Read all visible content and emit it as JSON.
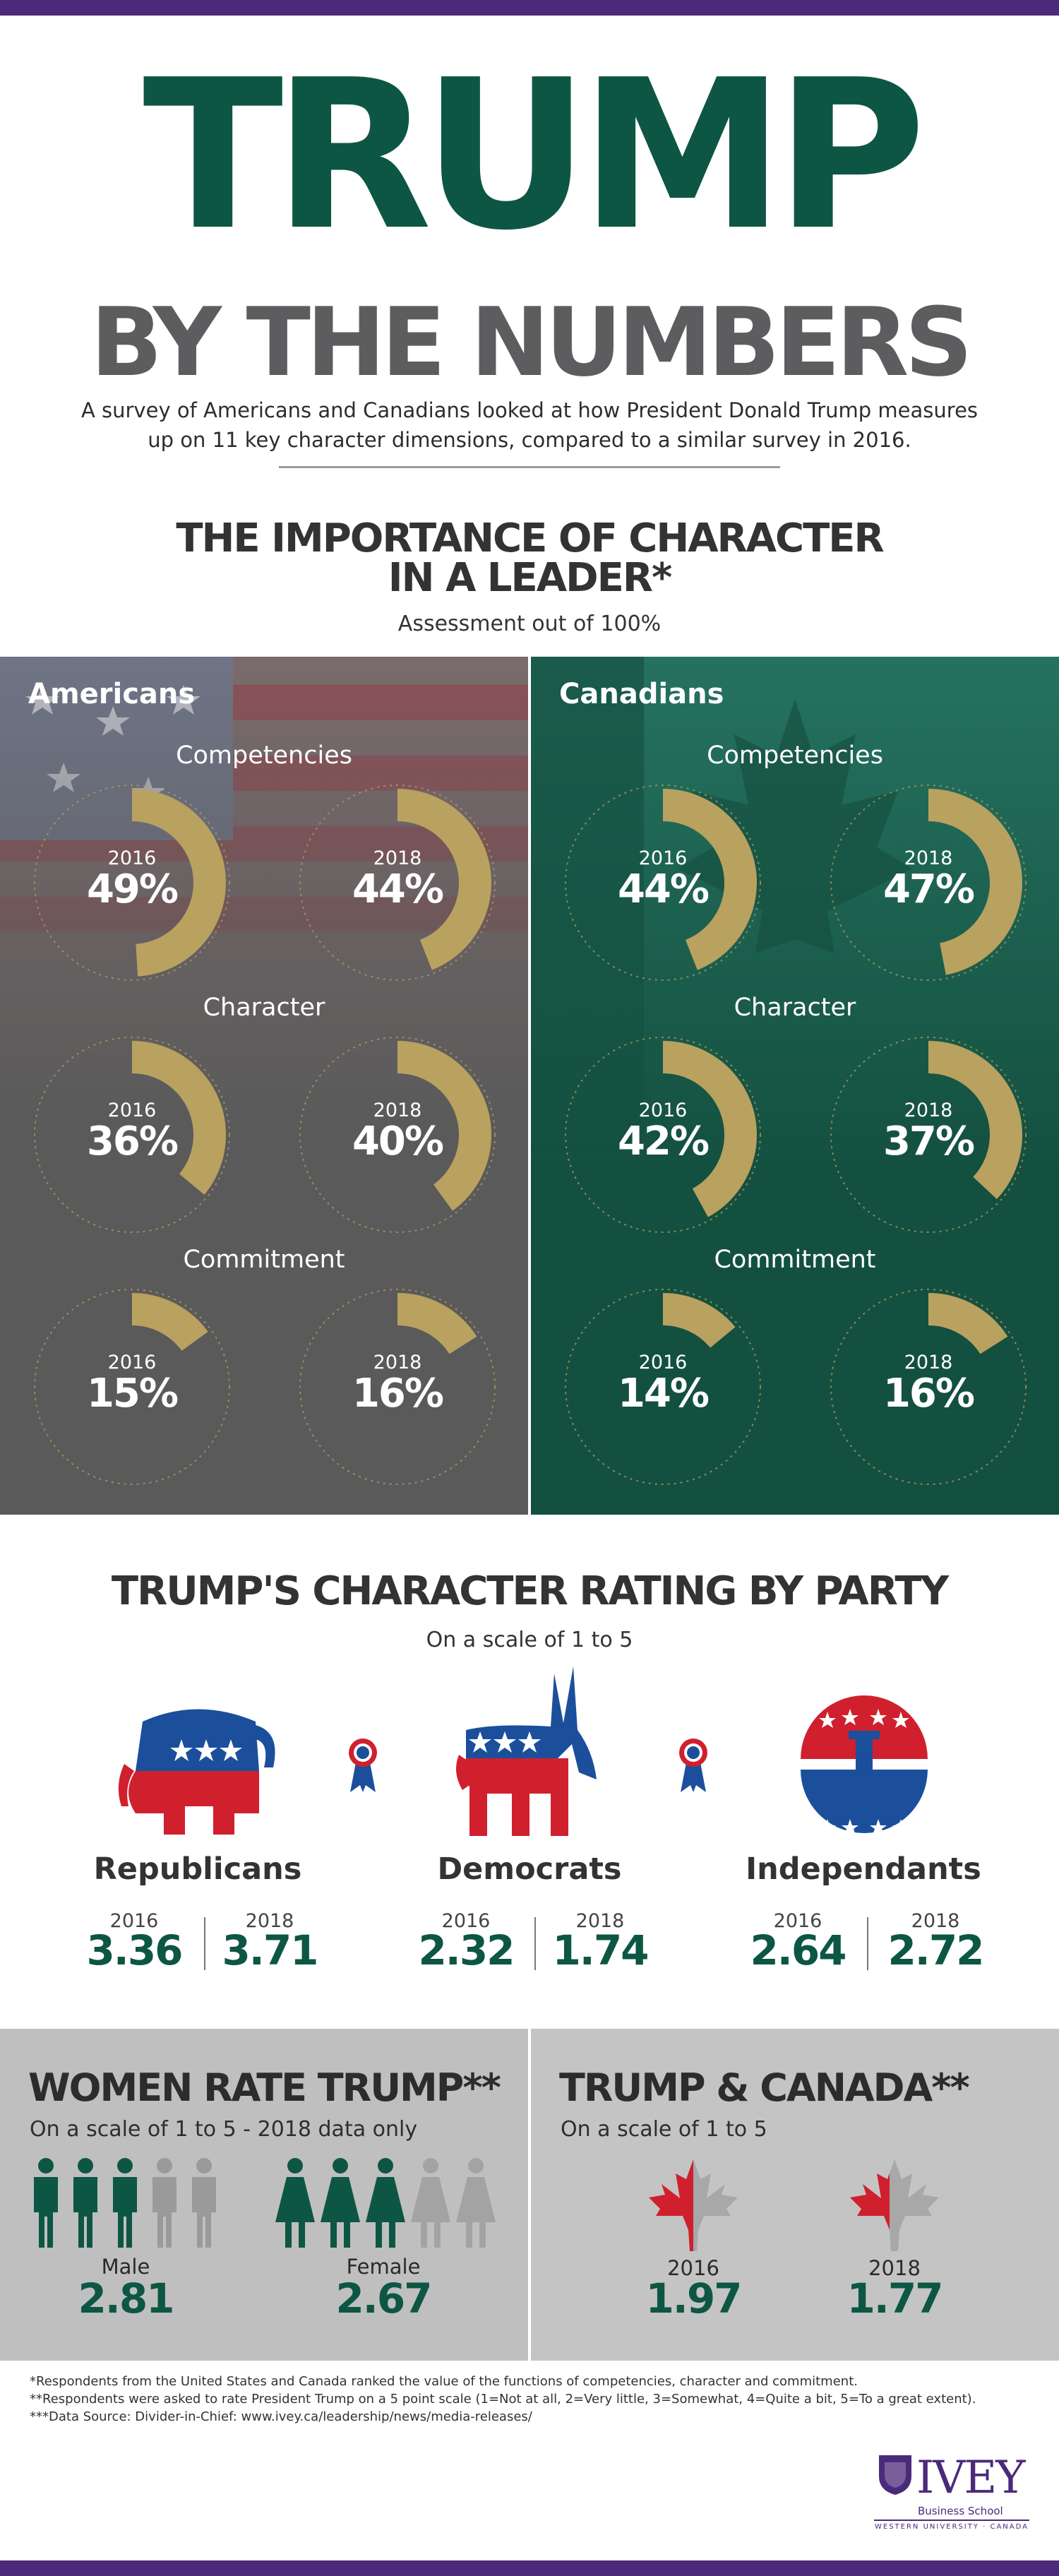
{
  "header": {
    "title": "TRUMP",
    "subtitle": "BY THE NUMBERS",
    "intro": "A survey of Americans and Canadians looked at how President Donald Trump measures up on 11 key character dimensions, compared to a similar survey in 2016."
  },
  "importance": {
    "title_line1": "THE IMPORTANCE OF CHARACTER",
    "title_line2": "IN A LEADER*",
    "subtitle": "Assessment out of 100%",
    "groups": [
      "Competencies",
      "Character",
      "Commitment"
    ],
    "americans_label": "Americans",
    "canadians_label": "Canadians"
  },
  "party": {
    "title": "TRUMP'S CHARACTER RATING BY PARTY",
    "subtitle": "On a scale of 1 to 5",
    "parties": [
      {
        "name": "Republicans",
        "y2016": "2016",
        "v2016": "3.36",
        "y2018": "2018",
        "v2018": "3.71"
      },
      {
        "name": "Democrats",
        "y2016": "2016",
        "v2016": "2.32",
        "y2018": "2018",
        "v2018": "1.74"
      },
      {
        "name": "Independants",
        "y2016": "2016",
        "v2016": "2.64",
        "y2018": "2018",
        "v2018": "2.72"
      }
    ]
  },
  "women": {
    "title": "WOMEN RATE TRUMP**",
    "subtitle": "On a scale of 1 to 5 - 2018 data only",
    "male_label": "Male",
    "male_value": "2.81",
    "female_label": "Female",
    "female_value": "2.67"
  },
  "canada": {
    "title": "TRUMP & CANADA**",
    "subtitle": "On a scale of 1 to 5",
    "y2016": "2016",
    "v2016": "1.97",
    "y2018": "2018",
    "v2018": "1.77"
  },
  "footnotes": {
    "line1": "*Respondents from the United States and Canada ranked the value of the functions of competencies, character and commitment.",
    "line2": "**Respondents were asked to rate President Trump on a 5 point scale (1=Not at all, 2=Very little, 3=Somewhat, 4=Quite a bit, 5=To a great extent).",
    "line3": "***Data Source: Divider-in-Chief: www.ivey.ca/leadership/news/media-releases/"
  },
  "logo": {
    "name": "IVEY",
    "school": "Business School",
    "tagline": "WESTERN UNIVERSITY · CANADA"
  },
  "colors": {
    "green": "#0d5644",
    "gold": "#b9a160",
    "purple": "#4b2a7b",
    "red": "#d0202e",
    "blue": "#1b4f9c"
  },
  "chart_data": [
    {
      "type": "pie",
      "title": "Americans",
      "unit": "%",
      "categories": [
        "Competencies",
        "Character",
        "Commitment"
      ],
      "series": [
        {
          "name": "2016",
          "values": [
            49,
            36,
            15
          ]
        },
        {
          "name": "2018",
          "values": [
            44,
            40,
            16
          ]
        }
      ]
    },
    {
      "type": "pie",
      "title": "Canadians",
      "unit": "%",
      "categories": [
        "Competencies",
        "Character",
        "Commitment"
      ],
      "series": [
        {
          "name": "2016",
          "values": [
            44,
            42,
            14
          ]
        },
        {
          "name": "2018",
          "values": [
            47,
            37,
            16
          ]
        }
      ]
    },
    {
      "type": "table",
      "title": "TRUMP'S CHARACTER RATING BY PARTY",
      "categories": [
        "Republicans",
        "Democrats",
        "Independants"
      ],
      "series": [
        {
          "name": "2016",
          "values": [
            3.36,
            2.32,
            2.64
          ]
        },
        {
          "name": "2018",
          "values": [
            3.71,
            1.74,
            2.72
          ]
        }
      ]
    },
    {
      "type": "table",
      "title": "WOMEN RATE TRUMP**",
      "categories": [
        "Male",
        "Female"
      ],
      "values": [
        2.81,
        2.67
      ]
    },
    {
      "type": "table",
      "title": "TRUMP & CANADA**",
      "categories": [
        "2016",
        "2018"
      ],
      "values": [
        1.97,
        1.77
      ]
    }
  ]
}
